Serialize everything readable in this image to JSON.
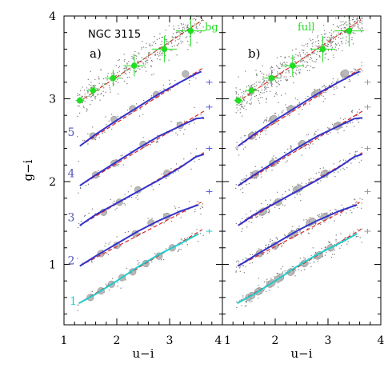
{
  "chart_data": {
    "type": "scatter",
    "title": "NGC 3115",
    "xlabel": "u−i",
    "ylabel": "g−i",
    "xlim": [
      1,
      4
    ],
    "ylim": [
      0.27,
      4
    ],
    "xticks": [
      1,
      2,
      3,
      4
    ],
    "yticks": [
      1,
      2,
      3,
      4
    ],
    "grid": false,
    "colors": {
      "green_points": "#22dd22",
      "blue_fit": "#3333cc",
      "cyan_fit": "#22cccc",
      "red_dashed": "#dd2222",
      "scatter_dots": "#777777",
      "binned_circles": "#b8b8b8",
      "bin_label": "#5555bb",
      "errbar_blue": "#5555ee",
      "errbar_gray": "#999999"
    },
    "panels": [
      {
        "label": "a)",
        "corner_label": "bg",
        "bin_labels": [
          {
            "text": "1",
            "x": 1.32,
            "y": 0.56
          },
          {
            "text": "2",
            "x": 1.28,
            "y": 1.05
          },
          {
            "text": "3",
            "x": 1.28,
            "y": 1.57
          },
          {
            "text": "4",
            "x": 1.28,
            "y": 2.1
          },
          {
            "text": "5",
            "x": 1.28,
            "y": 2.6
          }
        ],
        "green_points": [
          {
            "x": 1.3,
            "y": 2.98
          },
          {
            "x": 1.55,
            "y": 3.1
          },
          {
            "x": 1.93,
            "y": 3.25
          },
          {
            "x": 2.33,
            "y": 3.4
          },
          {
            "x": 2.9,
            "y": 3.6
          },
          {
            "x": 3.4,
            "y": 3.82
          }
        ],
        "error_bars": [
          {
            "x": 3.75,
            "y": 3.2
          },
          {
            "x": 3.75,
            "y": 2.9
          },
          {
            "x": 3.75,
            "y": 2.4
          },
          {
            "x": 3.75,
            "y": 1.88
          },
          {
            "x": 3.75,
            "y": 1.4
          }
        ]
      },
      {
        "label": "b)",
        "corner_label": "full",
        "bin_labels": [],
        "green_points": [
          {
            "x": 1.3,
            "y": 2.98
          },
          {
            "x": 1.55,
            "y": 3.1
          },
          {
            "x": 1.93,
            "y": 3.25
          },
          {
            "x": 2.33,
            "y": 3.4
          },
          {
            "x": 2.9,
            "y": 3.6
          },
          {
            "x": 3.4,
            "y": 3.82
          }
        ],
        "error_bars": [
          {
            "x": 3.75,
            "y": 3.2
          },
          {
            "x": 3.75,
            "y": 2.9
          },
          {
            "x": 3.75,
            "y": 2.4
          },
          {
            "x": 3.75,
            "y": 1.88
          },
          {
            "x": 3.75,
            "y": 1.4
          }
        ]
      }
    ],
    "sequences": [
      {
        "bin": 1,
        "fit_color": "cyan",
        "fit": [
          [
            1.28,
            0.53
          ],
          [
            1.6,
            0.64
          ],
          [
            2.0,
            0.8
          ],
          [
            2.4,
            0.97
          ],
          [
            2.8,
            1.12
          ],
          [
            3.2,
            1.25
          ],
          [
            3.55,
            1.37
          ]
        ],
        "dashed": [
          [
            1.28,
            0.53
          ],
          [
            3.62,
            1.42
          ]
        ],
        "binned": [
          [
            1.5,
            0.6
          ],
          [
            1.7,
            0.68
          ],
          [
            1.9,
            0.76
          ],
          [
            2.1,
            0.84
          ],
          [
            2.3,
            0.91
          ],
          [
            2.55,
            1.01
          ],
          [
            2.8,
            1.1
          ],
          [
            3.05,
            1.2
          ]
        ]
      },
      {
        "bin": 2,
        "fit_color": "blue",
        "fit": [
          [
            1.3,
            0.98
          ],
          [
            1.6,
            1.1
          ],
          [
            2.0,
            1.25
          ],
          [
            2.4,
            1.4
          ],
          [
            2.8,
            1.53
          ],
          [
            3.2,
            1.64
          ],
          [
            3.55,
            1.72
          ]
        ],
        "dashed": [
          [
            1.3,
            0.98
          ],
          [
            3.6,
            1.75
          ]
        ],
        "binned": [
          [
            1.7,
            1.13
          ],
          [
            2.0,
            1.23
          ],
          [
            2.35,
            1.37
          ],
          [
            2.65,
            1.5
          ],
          [
            2.95,
            1.58
          ]
        ]
      },
      {
        "bin": 3,
        "fit_color": "blue",
        "fit": [
          [
            1.3,
            1.47
          ],
          [
            1.6,
            1.6
          ],
          [
            2.0,
            1.74
          ],
          [
            2.4,
            1.88
          ],
          [
            2.8,
            2.02
          ],
          [
            3.2,
            2.17
          ],
          [
            3.5,
            2.3
          ],
          [
            3.65,
            2.33
          ]
        ],
        "dashed": [
          [
            1.3,
            1.47
          ],
          [
            3.65,
            2.35
          ]
        ],
        "binned": [
          [
            1.75,
            1.63
          ],
          [
            2.05,
            1.75
          ],
          [
            2.4,
            1.9
          ],
          [
            2.95,
            2.1
          ]
        ]
      },
      {
        "bin": 4,
        "fit_color": "blue",
        "fit": [
          [
            1.3,
            1.95
          ],
          [
            1.6,
            2.08
          ],
          [
            2.0,
            2.24
          ],
          [
            2.4,
            2.4
          ],
          [
            2.8,
            2.55
          ],
          [
            3.2,
            2.67
          ],
          [
            3.5,
            2.76
          ],
          [
            3.65,
            2.77
          ]
        ],
        "dashed": [
          [
            1.3,
            1.95
          ],
          [
            3.65,
            2.85
          ]
        ],
        "binned": [
          [
            1.6,
            2.08
          ],
          [
            1.95,
            2.22
          ],
          [
            2.5,
            2.45
          ],
          [
            3.2,
            2.68
          ]
        ]
      },
      {
        "bin": 5,
        "fit_color": "blue",
        "fit": [
          [
            1.3,
            2.43
          ],
          [
            1.6,
            2.57
          ],
          [
            2.0,
            2.74
          ],
          [
            2.4,
            2.9
          ],
          [
            2.8,
            3.06
          ],
          [
            3.2,
            3.2
          ],
          [
            3.5,
            3.3
          ],
          [
            3.6,
            3.33
          ]
        ],
        "dashed": [
          [
            1.3,
            2.43
          ],
          [
            3.65,
            3.38
          ]
        ],
        "binned": [
          [
            1.55,
            2.55
          ],
          [
            1.95,
            2.75
          ],
          [
            2.3,
            2.88
          ],
          [
            2.75,
            3.05
          ],
          [
            3.3,
            3.3
          ]
        ]
      },
      {
        "bin": 6,
        "fit_color": "green",
        "fit": [
          [
            1.28,
            2.96
          ],
          [
            3.62,
            3.95
          ]
        ],
        "dashed": [
          [
            1.28,
            2.96
          ],
          [
            3.62,
            3.95
          ]
        ],
        "binned": []
      }
    ]
  }
}
